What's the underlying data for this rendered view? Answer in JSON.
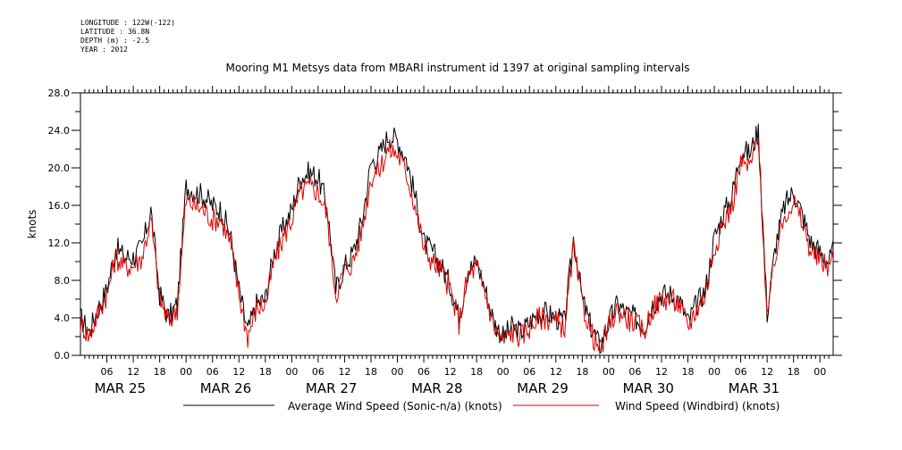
{
  "header": {
    "longitude": "LONGITUDE : 122W(-122)",
    "latitude": "LATITUDE : 36.8N",
    "depth": "DEPTH (m) : -2.5",
    "year": "YEAR : 2012"
  },
  "chart_data": {
    "type": "line",
    "title": "Mooring M1 Metsys data from MBARI instrument id 1397 at original sampling intervals",
    "ylabel": "knots",
    "xlabel": "",
    "ylim": [
      0,
      28
    ],
    "y_ticks": [
      "0.0",
      "4.0",
      "8.0",
      "12.0",
      "16.0",
      "20.0",
      "24.0",
      "28.0"
    ],
    "x_range_hours": [
      0,
      171
    ],
    "x_hour_ticks": [
      {
        "hour": 6,
        "label": "06"
      },
      {
        "hour": 12,
        "label": "12"
      },
      {
        "hour": 18,
        "label": "18"
      },
      {
        "hour": 24,
        "label": "00"
      },
      {
        "hour": 30,
        "label": "06"
      },
      {
        "hour": 36,
        "label": "12"
      },
      {
        "hour": 42,
        "label": "18"
      },
      {
        "hour": 48,
        "label": "00"
      },
      {
        "hour": 54,
        "label": "06"
      },
      {
        "hour": 60,
        "label": "12"
      },
      {
        "hour": 66,
        "label": "18"
      },
      {
        "hour": 72,
        "label": "00"
      },
      {
        "hour": 78,
        "label": "06"
      },
      {
        "hour": 84,
        "label": "12"
      },
      {
        "hour": 90,
        "label": "18"
      },
      {
        "hour": 96,
        "label": "00"
      },
      {
        "hour": 102,
        "label": "06"
      },
      {
        "hour": 108,
        "label": "12"
      },
      {
        "hour": 114,
        "label": "18"
      },
      {
        "hour": 120,
        "label": "00"
      },
      {
        "hour": 126,
        "label": "06"
      },
      {
        "hour": 132,
        "label": "12"
      },
      {
        "hour": 138,
        "label": "18"
      },
      {
        "hour": 144,
        "label": "00"
      },
      {
        "hour": 150,
        "label": "06"
      },
      {
        "hour": 156,
        "label": "12"
      },
      {
        "hour": 162,
        "label": "18"
      },
      {
        "hour": 168,
        "label": "00"
      }
    ],
    "day_labels": [
      {
        "hour": 9,
        "label": "MAR 25"
      },
      {
        "hour": 33,
        "label": "MAR 26"
      },
      {
        "hour": 57,
        "label": "MAR 27"
      },
      {
        "hour": 81,
        "label": "MAR 28"
      },
      {
        "hour": 105,
        "label": "MAR 29"
      },
      {
        "hour": 129,
        "label": "MAR 30"
      },
      {
        "hour": 153,
        "label": "MAR 31"
      }
    ],
    "x_hours": [
      0,
      2,
      4,
      6,
      8,
      10,
      12,
      14,
      16,
      18,
      20,
      22,
      24,
      26,
      28,
      30,
      32,
      34,
      36,
      38,
      40,
      42,
      44,
      46,
      48,
      50,
      52,
      54,
      56,
      58,
      60,
      62,
      64,
      66,
      68,
      70,
      72,
      74,
      76,
      78,
      80,
      82,
      84,
      86,
      88,
      90,
      92,
      94,
      96,
      98,
      100,
      102,
      104,
      106,
      108,
      110,
      112,
      114,
      116,
      118,
      120,
      122,
      124,
      126,
      128,
      130,
      132,
      134,
      136,
      138,
      140,
      142,
      144,
      146,
      148,
      150,
      152,
      154,
      156,
      158,
      160,
      162,
      164,
      166,
      168,
      170,
      171
    ],
    "series": [
      {
        "name": "Average Wind Speed (Sonic-n/a) (knots)",
        "color": "#000000",
        "values": [
          4.0,
          2.5,
          5.0,
          7.0,
          11.5,
          10.5,
          10.5,
          11.5,
          15.5,
          6.5,
          4.0,
          5.5,
          18.0,
          17.5,
          17.0,
          16.0,
          15.5,
          13.0,
          7.0,
          2.5,
          5.5,
          6.0,
          11.0,
          13.5,
          15.5,
          19.0,
          19.5,
          19.0,
          16.0,
          7.0,
          9.5,
          11.0,
          14.5,
          20.5,
          21.5,
          23.5,
          23.0,
          21.0,
          17.0,
          12.0,
          11.0,
          9.5,
          7.5,
          4.0,
          9.0,
          10.0,
          7.0,
          3.5,
          2.0,
          3.0,
          2.5,
          3.5,
          4.5,
          4.5,
          4.0,
          3.5,
          12.5,
          6.0,
          3.0,
          1.0,
          3.5,
          5.5,
          4.5,
          4.0,
          3.0,
          5.5,
          6.5,
          6.5,
          6.0,
          3.5,
          5.5,
          7.0,
          12.5,
          15.0,
          17.0,
          22.0,
          21.5,
          24.0,
          4.5,
          12.0,
          16.0,
          17.5,
          15.0,
          12.0,
          11.0,
          10.0,
          11.0
        ]
      },
      {
        "name": "Wind Speed (Windbird) (knots)",
        "color": "#dd0000",
        "values": [
          3.5,
          2.0,
          4.5,
          6.5,
          10.5,
          9.5,
          9.5,
          10.5,
          14.5,
          6.0,
          3.5,
          5.0,
          16.5,
          16.0,
          15.5,
          14.5,
          14.5,
          12.0,
          6.5,
          2.0,
          5.0,
          5.5,
          10.0,
          12.5,
          14.5,
          17.5,
          18.0,
          17.5,
          15.0,
          6.5,
          9.0,
          10.0,
          13.5,
          19.0,
          20.0,
          22.0,
          21.5,
          19.5,
          16.0,
          11.5,
          10.0,
          9.0,
          7.0,
          3.5,
          8.5,
          9.5,
          6.5,
          3.0,
          1.5,
          2.5,
          2.0,
          3.0,
          4.0,
          4.0,
          3.5,
          3.0,
          11.5,
          5.5,
          2.5,
          0.5,
          3.0,
          5.0,
          4.0,
          3.5,
          2.5,
          5.0,
          6.0,
          6.0,
          5.5,
          3.0,
          5.0,
          6.5,
          11.5,
          14.0,
          16.0,
          20.5,
          20.0,
          23.5,
          4.0,
          11.0,
          15.0,
          16.5,
          14.0,
          11.0,
          10.0,
          9.5,
          10.5
        ]
      }
    ],
    "legend_placement": "bottom",
    "grid": false
  }
}
